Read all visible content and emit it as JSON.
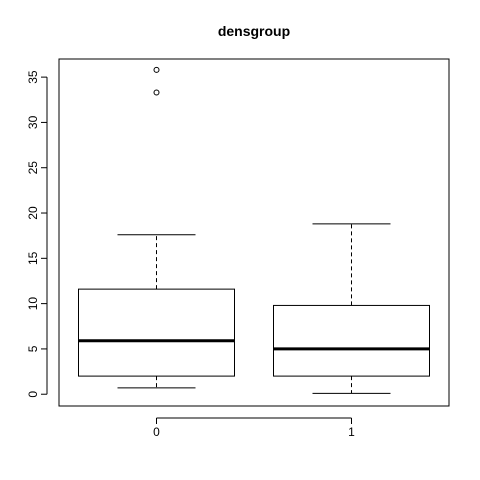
{
  "chart_data": {
    "type": "boxplot",
    "title": "densgroup",
    "xlabel": "",
    "ylabel": "",
    "categories": [
      "0",
      "1"
    ],
    "ylim": [
      -1.3,
      37.0
    ],
    "yticks": [
      0,
      5,
      10,
      15,
      20,
      25,
      30,
      35
    ],
    "grid": false,
    "boxes": [
      {
        "category": "0",
        "whisker_low": 0.7,
        "q1": 2.0,
        "median": 5.9,
        "q3": 11.6,
        "whisker_high": 17.6,
        "outliers": [
          33.3,
          35.8
        ]
      },
      {
        "category": "1",
        "whisker_low": 0.1,
        "q1": 2.0,
        "median": 5.0,
        "q3": 9.8,
        "whisker_high": 18.8,
        "outliers": []
      }
    ]
  }
}
